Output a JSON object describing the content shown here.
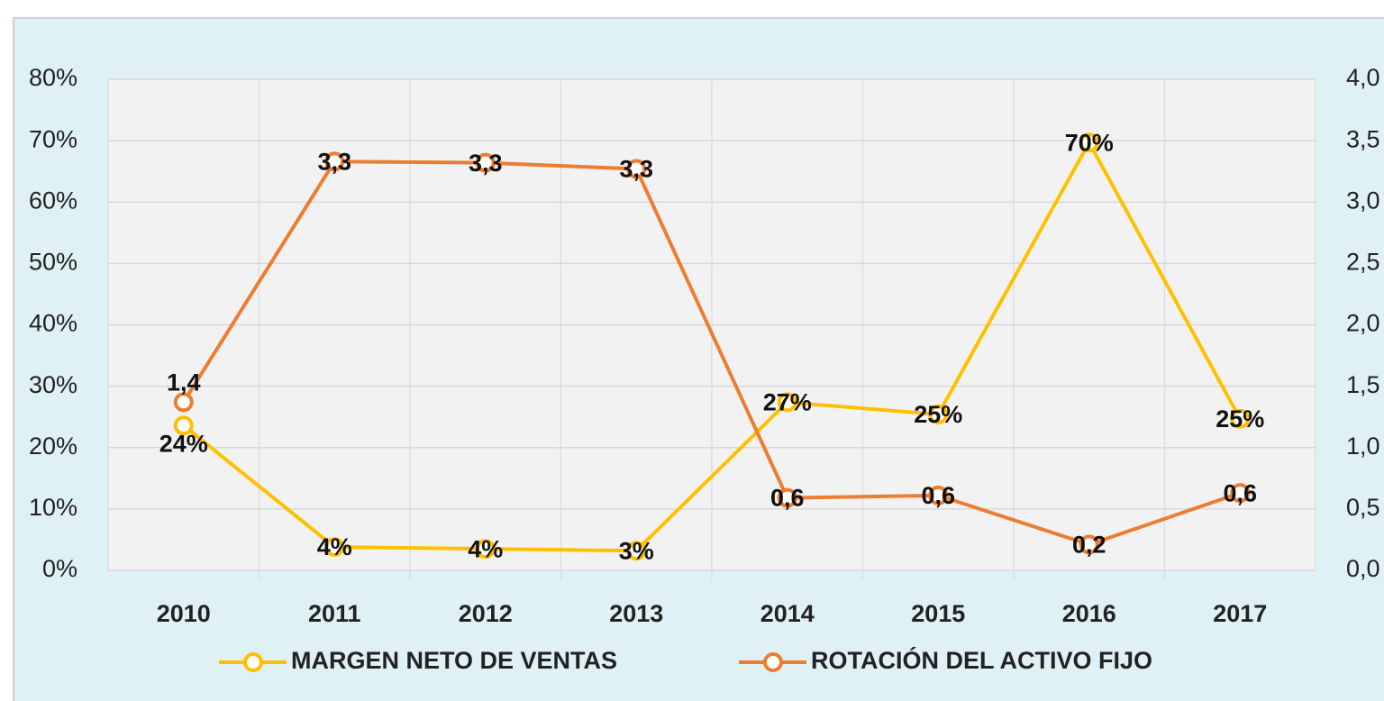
{
  "chart_data": {
    "type": "line",
    "categories": [
      "2010",
      "2011",
      "2012",
      "2013",
      "2014",
      "2015",
      "2016",
      "2017"
    ],
    "series": [
      {
        "name": "MARGEN NETO DE VENTAS",
        "color": "#ffc000",
        "values": [
          23.6,
          3.8,
          3.5,
          3.2,
          27.4,
          25.4,
          69.7,
          24.7
        ],
        "value_labels": [
          "24%",
          "4%",
          "4%",
          "3%",
          "27%",
          "25%",
          "70%",
          "25%"
        ]
      },
      {
        "name": "ROTACIÓN DEL ACTIVO FIJO",
        "color": "#ed7d31",
        "axis": "y2",
        "values": [
          1.37,
          3.33,
          3.32,
          3.27,
          0.59,
          0.61,
          0.21,
          0.63
        ],
        "value_labels": [
          "1,4",
          "3,3",
          "3,3",
          "3,3",
          "0,6",
          "0,6",
          "0,2",
          "0,6"
        ]
      }
    ],
    "ylim": [
      0,
      80
    ],
    "yticks": [
      {
        "value": 0,
        "label": "0%"
      },
      {
        "value": 10,
        "label": "10%"
      },
      {
        "value": 20,
        "label": "20%"
      },
      {
        "value": 30,
        "label": "30%"
      },
      {
        "value": 40,
        "label": "40%"
      },
      {
        "value": 50,
        "label": "50%"
      },
      {
        "value": 60,
        "label": "60%"
      },
      {
        "value": 70,
        "label": "70%"
      },
      {
        "value": 80,
        "label": "80%"
      }
    ],
    "y2lim": [
      0,
      4
    ],
    "y2ticks": [
      {
        "value": 0,
        "label": "0,0"
      },
      {
        "value": 0.5,
        "label": "0,5"
      },
      {
        "value": 1,
        "label": "1,0"
      },
      {
        "value": 1.5,
        "label": "1,5"
      },
      {
        "value": 2,
        "label": "2,0"
      },
      {
        "value": 2.5,
        "label": "2,5"
      },
      {
        "value": 3,
        "label": "3,0"
      },
      {
        "value": 3.5,
        "label": "3,5"
      },
      {
        "value": 4,
        "label": "4,0"
      }
    ],
    "grid": true,
    "legend": "bottom"
  }
}
